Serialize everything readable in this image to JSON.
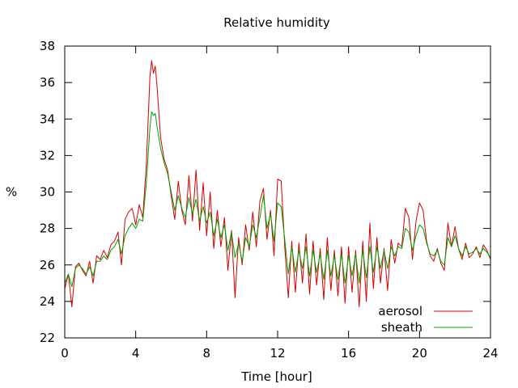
{
  "chart_data": {
    "type": "line",
    "title": "Relative humidity",
    "xlabel": "Time [hour]",
    "ylabel": "%",
    "xlim": [
      0,
      24
    ],
    "ylim": [
      22,
      38
    ],
    "xticks": [
      0,
      4,
      8,
      12,
      16,
      20,
      24
    ],
    "yticks": [
      22,
      24,
      26,
      28,
      30,
      32,
      34,
      36,
      38
    ],
    "grid": false,
    "legend_position": "bottom-right",
    "series": [
      {
        "name": "aerosol",
        "color": "#d40000",
        "x": [
          0,
          0.2,
          0.4,
          0.6,
          0.8,
          1.0,
          1.2,
          1.4,
          1.6,
          1.8,
          2.0,
          2.2,
          2.4,
          2.6,
          2.8,
          3.0,
          3.2,
          3.4,
          3.6,
          3.8,
          4.0,
          4.2,
          4.4,
          4.6,
          4.8,
          4.9,
          5.0,
          5.1,
          5.2,
          5.4,
          5.6,
          5.8,
          6.0,
          6.2,
          6.4,
          6.6,
          6.8,
          7.0,
          7.2,
          7.4,
          7.6,
          7.8,
          8.0,
          8.2,
          8.4,
          8.6,
          8.8,
          9.0,
          9.2,
          9.4,
          9.6,
          9.8,
          10.0,
          10.2,
          10.4,
          10.6,
          10.8,
          11.0,
          11.2,
          11.4,
          11.6,
          11.8,
          12.0,
          12.2,
          12.4,
          12.6,
          12.8,
          13.0,
          13.2,
          13.4,
          13.6,
          13.8,
          14.0,
          14.2,
          14.4,
          14.6,
          14.8,
          15.0,
          15.2,
          15.4,
          15.6,
          15.8,
          16.0,
          16.2,
          16.4,
          16.6,
          16.8,
          17.0,
          17.2,
          17.4,
          17.6,
          17.8,
          18.0,
          18.2,
          18.4,
          18.6,
          18.8,
          19.0,
          19.2,
          19.4,
          19.6,
          19.8,
          20.0,
          20.2,
          20.4,
          20.6,
          20.8,
          21.0,
          21.2,
          21.4,
          21.6,
          21.8,
          22.0,
          22.2,
          22.4,
          22.6,
          22.8,
          23.0,
          23.2,
          23.4,
          23.6,
          23.8,
          24.0
        ],
        "values": [
          24.7,
          25.5,
          23.7,
          25.9,
          26.1,
          25.7,
          25.4,
          26.2,
          25.0,
          26.5,
          26.3,
          26.8,
          26.4,
          27.1,
          27.3,
          27.8,
          26.0,
          28.5,
          28.9,
          29.1,
          28.2,
          29.3,
          28.6,
          31.5,
          36.3,
          37.2,
          36.5,
          36.9,
          35.8,
          33.0,
          31.8,
          31.2,
          29.8,
          28.5,
          30.6,
          29.0,
          28.2,
          30.9,
          28.4,
          31.2,
          27.9,
          30.5,
          27.6,
          30.0,
          26.9,
          29.0,
          27.0,
          28.6,
          25.7,
          27.9,
          24.2,
          27.5,
          26.0,
          28.2,
          26.8,
          28.9,
          27.0,
          29.5,
          30.2,
          27.4,
          29.0,
          26.5,
          30.7,
          30.6,
          27.0,
          24.2,
          27.3,
          24.5,
          27.2,
          25.0,
          27.7,
          24.4,
          27.3,
          24.9,
          26.9,
          24.1,
          27.5,
          24.6,
          26.8,
          24.3,
          27.0,
          23.9,
          27.0,
          24.5,
          26.8,
          23.7,
          27.3,
          24.0,
          28.3,
          24.7,
          27.5,
          25.0,
          26.9,
          24.6,
          27.4,
          26.1,
          27.2,
          27.0,
          29.1,
          28.6,
          26.3,
          28.4,
          29.4,
          29.0,
          27.3,
          26.5,
          26.2,
          26.9,
          26.1,
          25.7,
          28.3,
          27.0,
          28.1,
          26.9,
          26.3,
          27.2,
          26.4,
          26.6,
          27.0,
          26.4,
          27.1,
          26.8,
          26.3
        ]
      },
      {
        "name": "sheath",
        "color": "#00a000",
        "x": [
          0,
          0.2,
          0.4,
          0.6,
          0.8,
          1.0,
          1.2,
          1.4,
          1.6,
          1.8,
          2.0,
          2.2,
          2.4,
          2.6,
          2.8,
          3.0,
          3.2,
          3.4,
          3.6,
          3.8,
          4.0,
          4.2,
          4.4,
          4.6,
          4.8,
          4.9,
          5.0,
          5.1,
          5.2,
          5.4,
          5.6,
          5.8,
          6.0,
          6.2,
          6.4,
          6.6,
          6.8,
          7.0,
          7.2,
          7.4,
          7.6,
          7.8,
          8.0,
          8.2,
          8.4,
          8.6,
          8.8,
          9.0,
          9.2,
          9.4,
          9.6,
          9.8,
          10.0,
          10.2,
          10.4,
          10.6,
          10.8,
          11.0,
          11.2,
          11.4,
          11.6,
          11.8,
          12.0,
          12.2,
          12.4,
          12.6,
          12.8,
          13.0,
          13.2,
          13.4,
          13.6,
          13.8,
          14.0,
          14.2,
          14.4,
          14.6,
          14.8,
          15.0,
          15.2,
          15.4,
          15.6,
          15.8,
          16.0,
          16.2,
          16.4,
          16.6,
          16.8,
          17.0,
          17.2,
          17.4,
          17.6,
          17.8,
          18.0,
          18.2,
          18.4,
          18.6,
          18.8,
          19.0,
          19.2,
          19.4,
          19.6,
          19.8,
          20.0,
          20.2,
          20.4,
          20.6,
          20.8,
          21.0,
          21.2,
          21.4,
          21.6,
          21.8,
          22.0,
          22.2,
          22.4,
          22.6,
          22.8,
          23.0,
          23.2,
          23.4,
          23.6,
          23.8,
          24.0
        ],
        "values": [
          25.0,
          25.5,
          24.8,
          25.8,
          26.0,
          25.8,
          25.5,
          25.9,
          25.4,
          26.2,
          26.2,
          26.5,
          26.3,
          26.8,
          27.0,
          27.4,
          26.6,
          27.6,
          28.0,
          28.3,
          28.0,
          28.5,
          28.4,
          30.5,
          33.5,
          34.4,
          34.2,
          34.3,
          33.6,
          32.4,
          31.6,
          31.0,
          30.0,
          29.0,
          29.8,
          29.1,
          28.6,
          29.7,
          28.8,
          29.6,
          28.4,
          29.2,
          28.3,
          28.9,
          27.6,
          28.5,
          27.5,
          28.2,
          26.8,
          27.8,
          26.4,
          27.2,
          26.2,
          27.5,
          27.0,
          28.2,
          27.5,
          28.6,
          29.8,
          28.0,
          28.8,
          27.3,
          29.4,
          29.2,
          27.4,
          25.5,
          27.0,
          25.6,
          26.8,
          25.8,
          27.0,
          25.4,
          26.8,
          25.6,
          26.6,
          25.2,
          26.8,
          25.4,
          26.5,
          25.2,
          26.6,
          25.0,
          26.5,
          25.4,
          26.6,
          25.0,
          26.8,
          25.3,
          27.0,
          25.6,
          27.0,
          25.8,
          26.8,
          25.8,
          27.0,
          26.5,
          27.0,
          26.9,
          28.0,
          27.8,
          26.8,
          27.6,
          28.2,
          28.0,
          27.2,
          26.6,
          26.5,
          26.8,
          26.2,
          26.0,
          27.5,
          27.0,
          27.6,
          26.9,
          26.5,
          27.0,
          26.6,
          26.7,
          26.9,
          26.6,
          26.9,
          26.7,
          26.4
        ]
      }
    ]
  }
}
